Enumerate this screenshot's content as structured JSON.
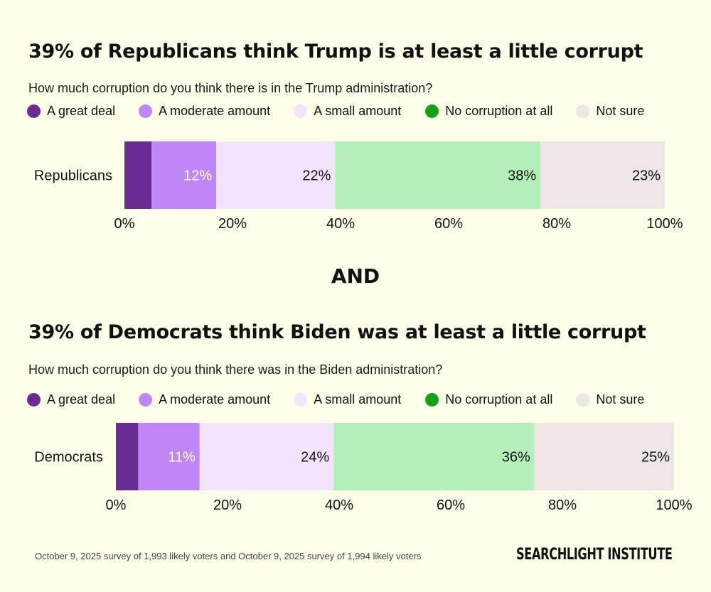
{
  "chart_data": [
    {
      "type": "bar",
      "orientation": "horizontal-stacked",
      "title": "39% of Republicans think Trump is at least a little corrupt",
      "subtitle": "How much corruption do you think there is in the Trump administration?",
      "categories": [
        "Republicans"
      ],
      "series": [
        {
          "name": "A great deal",
          "values": [
            5
          ],
          "label": "",
          "color": "#6b2c91",
          "label_color": "#ffffff"
        },
        {
          "name": "A moderate amount",
          "values": [
            12
          ],
          "label": "12%",
          "color": "#c086f5",
          "label_color": "#ffffff"
        },
        {
          "name": "A small amount",
          "values": [
            22
          ],
          "label": "22%",
          "color": "#f3e3fd",
          "label_color": "#111111"
        },
        {
          "name": "No corruption at all",
          "values": [
            38
          ],
          "label": "38%",
          "color": "#b3f0b9",
          "label_color": "#111111"
        },
        {
          "name": "Not sure",
          "values": [
            23
          ],
          "label": "23%",
          "color": "#ede6e4",
          "label_color": "#111111"
        }
      ],
      "legend_colors": [
        "#6b2c91",
        "#c086f5",
        "#f3e3fd",
        "#14a01e",
        "#ede6e4"
      ],
      "xlim": [
        0,
        100
      ],
      "ticks": [
        "0%",
        "20%",
        "40%",
        "60%",
        "80%",
        "100%"
      ]
    },
    {
      "type": "bar",
      "orientation": "horizontal-stacked",
      "title": "39% of Democrats think Biden was at least a little corrupt",
      "subtitle": "How much corruption do you think there was in the Biden administration?",
      "categories": [
        "Democrats"
      ],
      "series": [
        {
          "name": "A great deal",
          "values": [
            4
          ],
          "label": "",
          "color": "#6b2c91",
          "label_color": "#ffffff"
        },
        {
          "name": "A moderate amount",
          "values": [
            11
          ],
          "label": "11%",
          "color": "#c086f5",
          "label_color": "#ffffff"
        },
        {
          "name": "A small amount",
          "values": [
            24
          ],
          "label": "24%",
          "color": "#f3e3fd",
          "label_color": "#111111"
        },
        {
          "name": "No corruption at all",
          "values": [
            36
          ],
          "label": "36%",
          "color": "#b3f0b9",
          "label_color": "#111111"
        },
        {
          "name": "Not sure",
          "values": [
            25
          ],
          "label": "25%",
          "color": "#ede6e4",
          "label_color": "#111111"
        }
      ],
      "legend_colors": [
        "#6b2c91",
        "#c086f5",
        "#f3e3fd",
        "#14a01e",
        "#ede6e4"
      ],
      "xlim": [
        0,
        100
      ],
      "ticks": [
        "0%",
        "20%",
        "40%",
        "60%",
        "80%",
        "100%"
      ]
    }
  ],
  "connector": "AND",
  "footnote": "October 9, 2025 survey of 1,993 likely voters and October 9, 2025 survey of 1,994 likely voters",
  "brand": "SEARCHLIGHT INSTITUTE"
}
